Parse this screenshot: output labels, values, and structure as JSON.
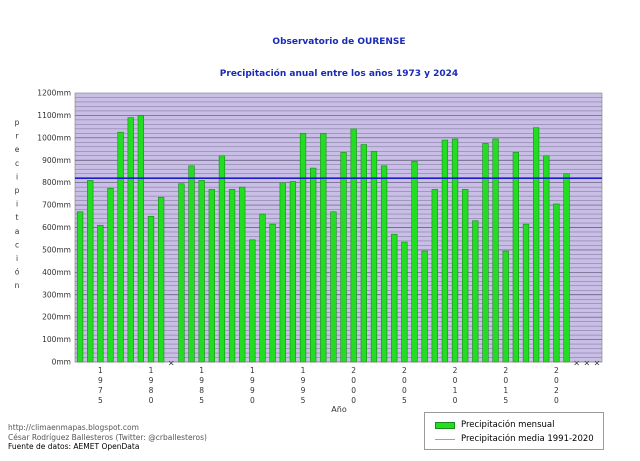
{
  "chart_data": {
    "type": "bar",
    "title": "Observatorio de OURENSE",
    "subtitle": "Precipitación anual entre los años 1973 y 2024",
    "ylabel": "precipitación",
    "xlabel": "Año",
    "ylim": [
      0,
      1200
    ],
    "y_ticks": [
      "0mm",
      "100mm",
      "200mm",
      "300mm",
      "400mm",
      "500mm",
      "600mm",
      "700mm",
      "800mm",
      "900mm",
      "1000mm",
      "1100mm",
      "1200mm"
    ],
    "x_tick_labels": [
      "1975",
      "1980",
      "1985",
      "1990",
      "1995",
      "2000",
      "2005",
      "2010",
      "2015",
      "2020"
    ],
    "grid": true,
    "legend_position": "bottom-right",
    "categories": [
      "1973",
      "1974",
      "1975",
      "1976",
      "1977",
      "1978",
      "1979",
      "1980",
      "1981",
      "1982",
      "1983",
      "1984",
      "1985",
      "1986",
      "1987",
      "1988",
      "1989",
      "1990",
      "1991",
      "1992",
      "1993",
      "1994",
      "1995",
      "1996",
      "1997",
      "1998",
      "1999",
      "2000",
      "2001",
      "2002",
      "2003",
      "2004",
      "2005",
      "2006",
      "2007",
      "2008",
      "2009",
      "2010",
      "2011",
      "2012",
      "2013",
      "2014",
      "2015",
      "2016",
      "2017",
      "2018",
      "2019",
      "2020",
      "2021",
      "2022",
      "2023",
      "2024"
    ],
    "series": [
      {
        "name": "Precipitación mensual",
        "color": "#22dd22",
        "values": [
          670,
          810,
          610,
          775,
          1025,
          1090,
          1100,
          650,
          735,
          null,
          795,
          875,
          810,
          770,
          920,
          770,
          780,
          545,
          660,
          615,
          800,
          805,
          1020,
          865,
          1020,
          670,
          935,
          1040,
          970,
          940,
          875,
          570,
          535,
          895,
          495,
          770,
          990,
          995,
          770,
          630,
          975,
          995,
          495,
          935,
          615,
          1045,
          920,
          705,
          840,
          null,
          null,
          null
        ]
      },
      {
        "name": "Precipitación media 1991-2020",
        "color": "#1c1ccc",
        "value": 820
      }
    ],
    "missing_marker": "×"
  },
  "credits": {
    "url": "http://climaenmapas.blogspot.com",
    "author": "César Rodríguez Ballesteros (Twitter: @crballesteros)",
    "source": "Fuente de datos: AEMET OpenData"
  },
  "legend": {
    "bars": "Precipitación mensual",
    "mean": "Precipitación media 1991-2020"
  }
}
